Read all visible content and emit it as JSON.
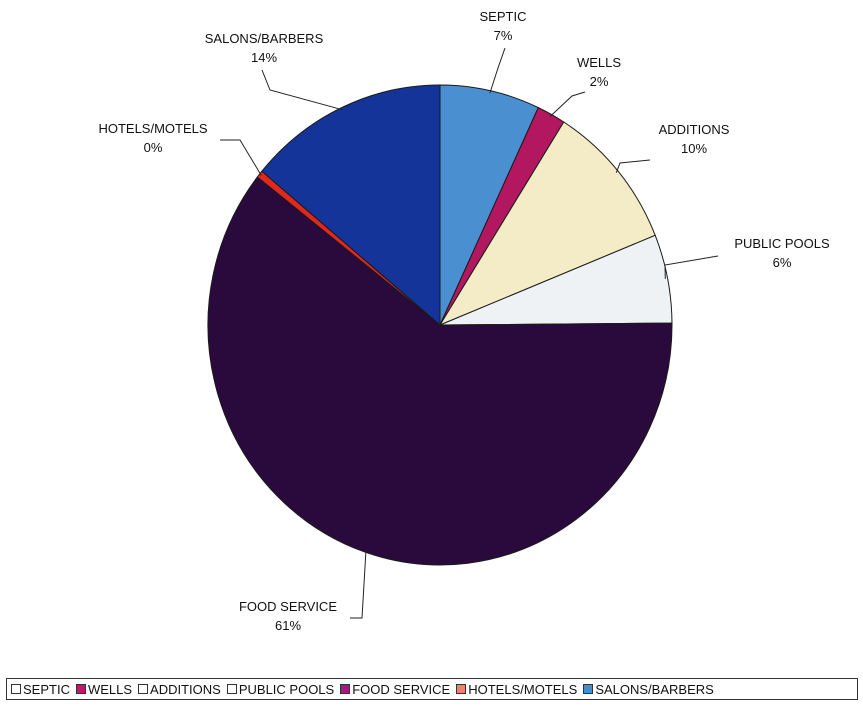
{
  "chart_data": {
    "type": "pie",
    "title": "",
    "slices": [
      {
        "label": "SEPTIC",
        "value": 7,
        "display": "7%",
        "color": "#4a8fcf"
      },
      {
        "label": "WELLS",
        "value": 2,
        "display": "2%",
        "color": "#b3175f"
      },
      {
        "label": "ADDITIONS",
        "value": 10,
        "display": "10%",
        "color": "#f3ecc6"
      },
      {
        "label": "PUBLIC POOLS",
        "value": 6,
        "display": "6%",
        "color": "#eef2f5"
      },
      {
        "label": "FOOD SERVICE",
        "value": 61,
        "display": "61%",
        "color": "#2a0a3c"
      },
      {
        "label": "HOTELS/MOTELS",
        "value": 0.5,
        "display": "0%",
        "color": "#e0281e"
      },
      {
        "label": "SALONS/BARBERS",
        "value": 14,
        "display": "14%",
        "color": "#14349a"
      }
    ],
    "legend": {
      "position": "bottom",
      "items": [
        "SEPTIC",
        "WELLS",
        "ADDITIONS",
        "PUBLIC POOLS",
        "FOOD SERVICE",
        "HOTELS/MOTELS",
        "SALONS/BARBERS"
      ],
      "colors": [
        "#ffffff",
        "#c2186b",
        "#ffffff",
        "#ffffff",
        "#9a1f7e",
        "#f08070",
        "#3f8fd4"
      ]
    }
  }
}
